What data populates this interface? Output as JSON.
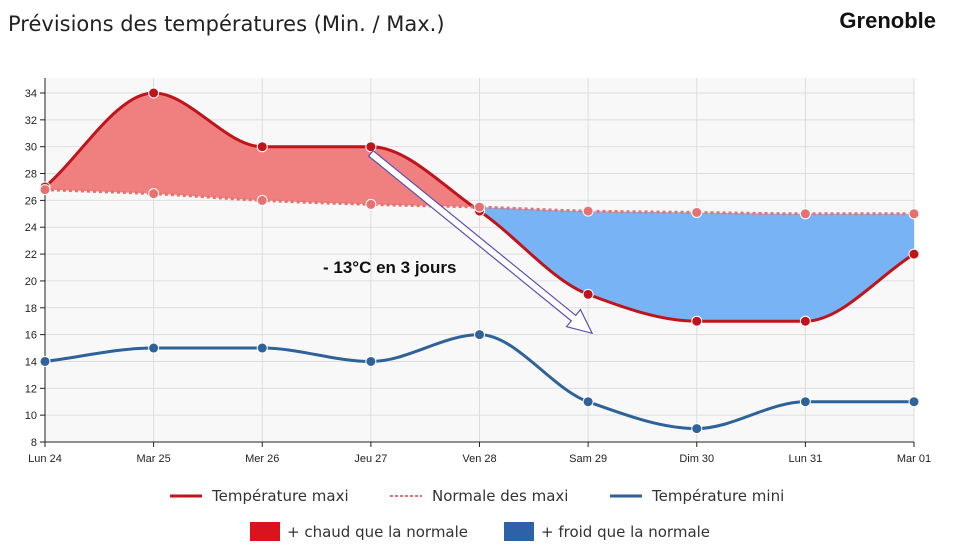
{
  "header": {
    "title": "Prévisions des températures (Min. / Max.)",
    "city": "Grenoble"
  },
  "chart_data": {
    "type": "line",
    "title": "Prévisions des températures (Min. / Max.)",
    "categories": [
      "Lun 24",
      "Mar 25",
      "Mer 26",
      "Jeu 27",
      "Ven 28",
      "Sam 29",
      "Dim 30",
      "Lun 31",
      "Mar 01"
    ],
    "ylim": [
      8,
      35
    ],
    "yticks": [
      8,
      10,
      12,
      14,
      16,
      18,
      20,
      22,
      24,
      26,
      28,
      30,
      32,
      34
    ],
    "grid": true,
    "series": [
      {
        "name": "Température maxi",
        "color": "#c0141c",
        "style": "solid",
        "values": [
          27,
          34,
          30,
          30,
          25.2,
          19,
          17,
          17,
          22
        ]
      },
      {
        "name": "Normale des maxi",
        "color": "#e87070",
        "style": "dotted",
        "values": [
          26.8,
          26.5,
          26,
          25.7,
          25.5,
          25.2,
          25.1,
          25,
          25
        ]
      },
      {
        "name": "Température mini",
        "color": "#2e6299",
        "style": "solid",
        "values": [
          14,
          15,
          15,
          14,
          16,
          11,
          9,
          11,
          11
        ]
      }
    ],
    "fills": [
      {
        "name": "+ chaud que la normale",
        "color": "#f08080",
        "legend_color": "#d9141c"
      },
      {
        "name": "+ froid que la normale",
        "color": "#78b4f5",
        "legend_color": "#2e62a8"
      }
    ],
    "annotation": {
      "text": "- 13°C en 3 jours",
      "arrow_from": "Jeu 27",
      "arrow_to": "Sam 29"
    },
    "legend_placement": "bottom"
  }
}
